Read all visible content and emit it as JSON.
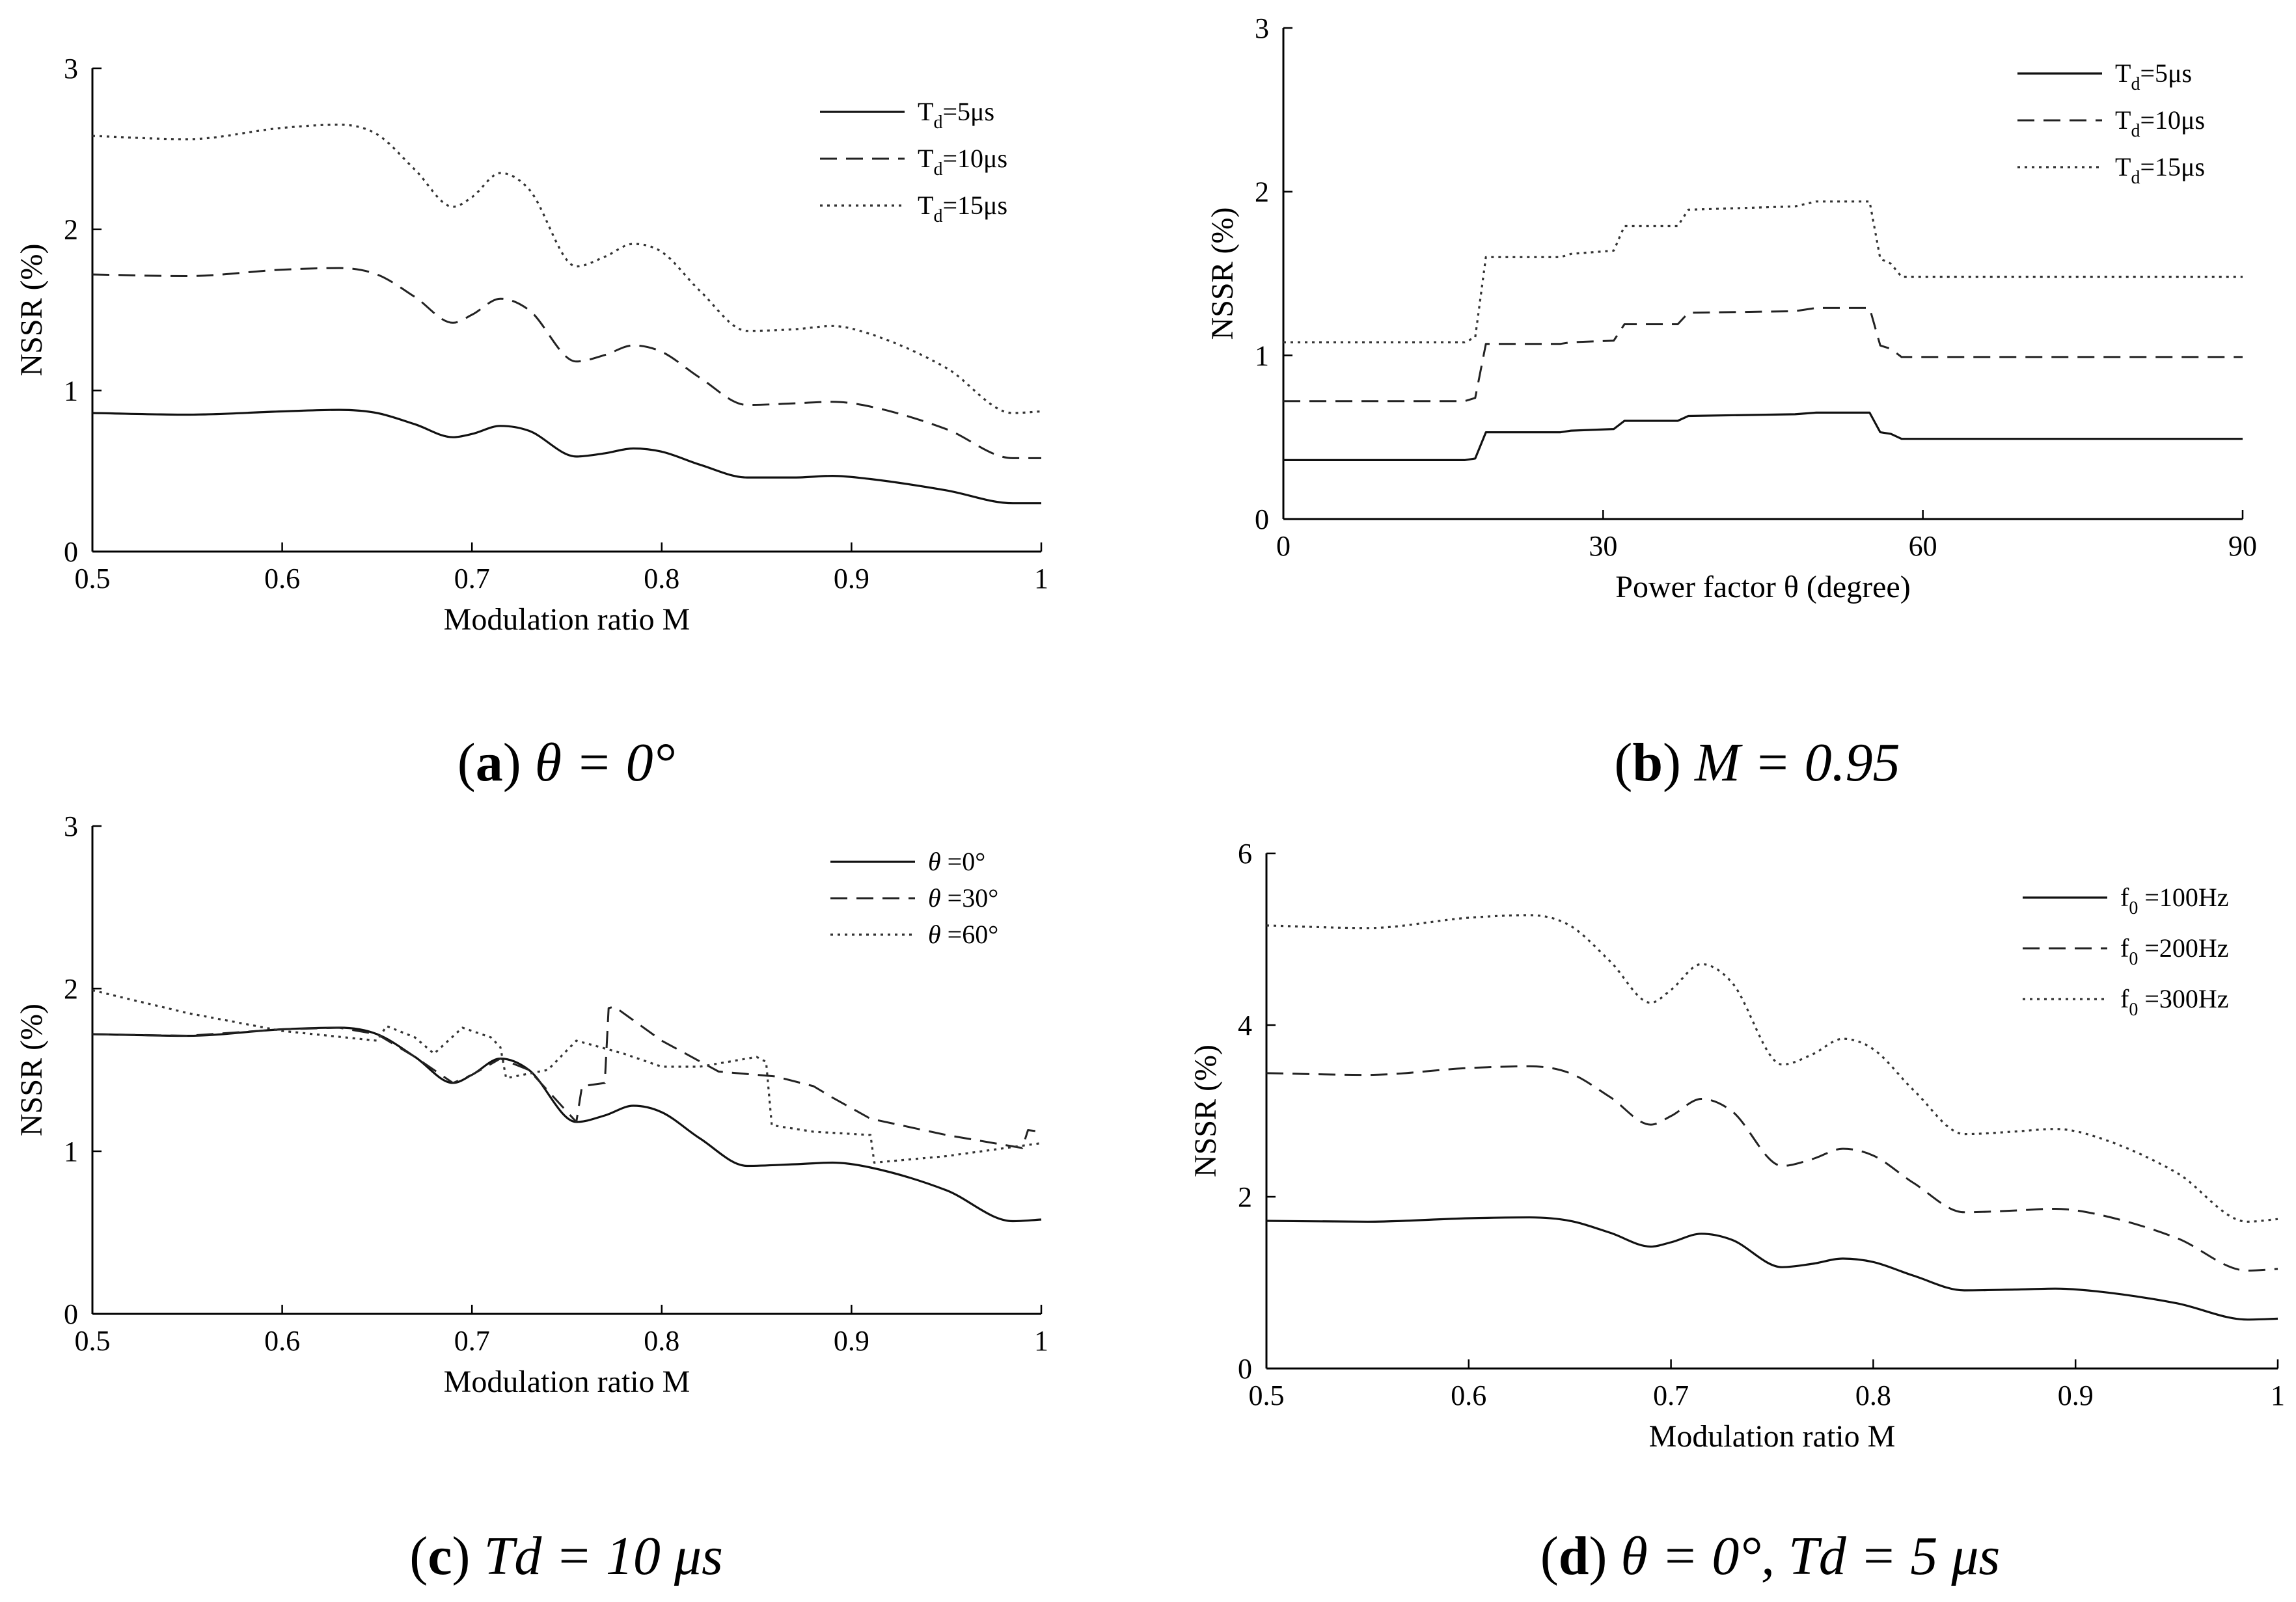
{
  "captions": [
    {
      "letter": "a",
      "text": " θ = 0°"
    },
    {
      "letter": "b",
      "text": " M = 0.95"
    },
    {
      "letter": "c",
      "text": " Td = 10 μs"
    },
    {
      "letter": "d",
      "text": " θ = 0°, Td = 5 μs"
    }
  ],
  "chart_data": [
    {
      "id": "a",
      "type": "line",
      "xlabel": "Modulation ratio  M",
      "ylabel": "NSSR (%)",
      "xlim": [
        0.5,
        1.0
      ],
      "ylim": [
        0,
        3
      ],
      "xticks": [
        0.5,
        0.6,
        0.7,
        0.8,
        0.9,
        1.0
      ],
      "xtick_labels": [
        "0.5",
        "0.6",
        "0.7",
        "0.8",
        "0.9",
        "1"
      ],
      "yticks": [
        0,
        1,
        2,
        3
      ],
      "ytick_labels": [
        "0",
        "1",
        "2",
        "3"
      ],
      "legend_position": "top-right",
      "grid": false,
      "series": [
        {
          "name": "Td=5μs",
          "legend_main": "T",
          "legend_sub": "d",
          "legend_rest": "=5μs",
          "style": "solid",
          "x": [
            0.5,
            0.55,
            0.6,
            0.63,
            0.65,
            0.67,
            0.69,
            0.7,
            0.715,
            0.73,
            0.755,
            0.77,
            0.785,
            0.8,
            0.82,
            0.845,
            0.87,
            0.89,
            0.91,
            0.95,
            0.985,
            1.0
          ],
          "y": [
            0.86,
            0.85,
            0.87,
            0.88,
            0.86,
            0.79,
            0.71,
            0.73,
            0.78,
            0.75,
            0.59,
            0.61,
            0.64,
            0.62,
            0.54,
            0.46,
            0.46,
            0.47,
            0.45,
            0.38,
            0.3,
            0.3
          ]
        },
        {
          "name": "Td=10μs",
          "legend_main": "T",
          "legend_sub": "d",
          "legend_rest": "=10μs",
          "style": "dashed",
          "x": [
            0.5,
            0.55,
            0.6,
            0.63,
            0.65,
            0.67,
            0.69,
            0.7,
            0.715,
            0.73,
            0.755,
            0.77,
            0.785,
            0.8,
            0.82,
            0.845,
            0.87,
            0.89,
            0.91,
            0.95,
            0.985,
            1.0
          ],
          "y": [
            1.72,
            1.71,
            1.75,
            1.76,
            1.72,
            1.58,
            1.42,
            1.47,
            1.57,
            1.5,
            1.18,
            1.22,
            1.28,
            1.24,
            1.08,
            0.91,
            0.92,
            0.93,
            0.9,
            0.76,
            0.58,
            0.58
          ]
        },
        {
          "name": "Td=15μs",
          "legend_main": "T",
          "legend_sub": "d",
          "legend_rest": "=15μs",
          "style": "dotted",
          "x": [
            0.5,
            0.55,
            0.6,
            0.63,
            0.65,
            0.67,
            0.69,
            0.7,
            0.715,
            0.73,
            0.755,
            0.77,
            0.785,
            0.8,
            0.82,
            0.845,
            0.87,
            0.89,
            0.91,
            0.95,
            0.985,
            1.0
          ],
          "y": [
            2.58,
            2.56,
            2.63,
            2.65,
            2.59,
            2.37,
            2.14,
            2.2,
            2.35,
            2.25,
            1.77,
            1.83,
            1.91,
            1.86,
            1.62,
            1.37,
            1.38,
            1.4,
            1.35,
            1.14,
            0.86,
            0.87
          ]
        }
      ]
    },
    {
      "id": "b",
      "type": "line",
      "xlabel": "Power factor θ  (degree)",
      "ylabel": "NSSR (%)",
      "xlim": [
        0,
        90
      ],
      "ylim": [
        0,
        3
      ],
      "xticks": [
        0,
        30,
        60,
        90
      ],
      "xtick_labels": [
        "0",
        "30",
        "60",
        "90"
      ],
      "yticks": [
        0,
        1,
        2,
        3
      ],
      "ytick_labels": [
        "0",
        "1",
        "2",
        "3"
      ],
      "legend_position": "top-right",
      "grid": false,
      "series": [
        {
          "name": "Td=5μs",
          "legend_main": "T",
          "legend_sub": "d",
          "legend_rest": "=5μs",
          "style": "solid",
          "x": [
            0,
            17,
            18,
            19,
            26,
            27,
            31,
            32,
            37,
            38,
            48,
            50,
            55,
            56,
            57,
            58,
            90
          ],
          "y": [
            0.36,
            0.36,
            0.37,
            0.53,
            0.53,
            0.54,
            0.55,
            0.6,
            0.6,
            0.63,
            0.64,
            0.65,
            0.65,
            0.53,
            0.52,
            0.49,
            0.49
          ]
        },
        {
          "name": "Td=10μs",
          "legend_main": "T",
          "legend_sub": "d",
          "legend_rest": "=10μs",
          "style": "dashed",
          "x": [
            0,
            17,
            18,
            19,
            26,
            27,
            31,
            32,
            37,
            38,
            48,
            50,
            55,
            56,
            57,
            58,
            90
          ],
          "y": [
            0.72,
            0.72,
            0.74,
            1.07,
            1.07,
            1.08,
            1.09,
            1.19,
            1.19,
            1.26,
            1.27,
            1.29,
            1.29,
            1.06,
            1.04,
            0.99,
            0.99
          ]
        },
        {
          "name": "Td=15μs",
          "legend_main": "T",
          "legend_sub": "d",
          "legend_rest": "=15μs",
          "style": "dotted",
          "x": [
            0,
            17,
            18,
            19,
            26,
            27,
            31,
            32,
            37,
            38,
            48,
            50,
            55,
            56,
            57,
            58,
            90
          ],
          "y": [
            1.08,
            1.08,
            1.11,
            1.6,
            1.6,
            1.62,
            1.64,
            1.79,
            1.79,
            1.89,
            1.91,
            1.94,
            1.94,
            1.59,
            1.56,
            1.48,
            1.48
          ]
        }
      ]
    },
    {
      "id": "c",
      "type": "line",
      "xlabel": "Modulation ratio  M",
      "ylabel": "NSSR (%)",
      "xlim": [
        0.5,
        1.0
      ],
      "ylim": [
        0,
        3
      ],
      "xticks": [
        0.5,
        0.6,
        0.7,
        0.8,
        0.9,
        1.0
      ],
      "xtick_labels": [
        "0.5",
        "0.6",
        "0.7",
        "0.8",
        "0.9",
        "1"
      ],
      "yticks": [
        0,
        1,
        2,
        3
      ],
      "ytick_labels": [
        "0",
        "1",
        "2",
        "3"
      ],
      "legend_position": "top-right",
      "grid": false,
      "series": [
        {
          "name": "θ =0°",
          "legend_main": "θ",
          "legend_sub": "",
          "legend_rest": " =0°",
          "style": "solid",
          "x": [
            0.5,
            0.55,
            0.6,
            0.63,
            0.65,
            0.67,
            0.69,
            0.7,
            0.715,
            0.73,
            0.755,
            0.77,
            0.785,
            0.8,
            0.82,
            0.845,
            0.87,
            0.89,
            0.91,
            0.95,
            0.985,
            1.0
          ],
          "y": [
            1.72,
            1.71,
            1.75,
            1.76,
            1.72,
            1.58,
            1.42,
            1.47,
            1.57,
            1.5,
            1.18,
            1.22,
            1.28,
            1.24,
            1.08,
            0.91,
            0.92,
            0.93,
            0.9,
            0.76,
            0.57,
            0.58
          ]
        },
        {
          "name": "θ =30°",
          "legend_main": "θ",
          "legend_sub": "",
          "legend_rest": " =30°",
          "style": "dashed",
          "x": [
            0.5,
            0.55,
            0.6,
            0.63,
            0.65,
            0.67,
            0.69,
            0.7,
            0.715,
            0.73,
            0.755,
            0.758,
            0.77,
            0.772,
            0.775,
            0.8,
            0.83,
            0.86,
            0.88,
            0.89,
            0.91,
            0.95,
            0.99,
            0.993,
            1.0
          ],
          "y": [
            1.72,
            1.71,
            1.75,
            1.76,
            1.72,
            1.58,
            1.42,
            1.47,
            1.57,
            1.5,
            1.18,
            1.4,
            1.42,
            1.88,
            1.89,
            1.68,
            1.49,
            1.46,
            1.4,
            1.33,
            1.2,
            1.1,
            1.02,
            1.13,
            1.12
          ]
        },
        {
          "name": "θ =60°",
          "legend_main": "θ",
          "legend_sub": "",
          "legend_rest": " =60°",
          "style": "dotted",
          "x": [
            0.5,
            0.55,
            0.6,
            0.65,
            0.655,
            0.67,
            0.68,
            0.695,
            0.71,
            0.715,
            0.718,
            0.74,
            0.755,
            0.78,
            0.8,
            0.82,
            0.85,
            0.855,
            0.858,
            0.88,
            0.91,
            0.912,
            0.95,
            1.0
          ],
          "y": [
            1.99,
            1.85,
            1.74,
            1.68,
            1.77,
            1.7,
            1.6,
            1.76,
            1.7,
            1.64,
            1.45,
            1.5,
            1.68,
            1.6,
            1.52,
            1.52,
            1.58,
            1.55,
            1.16,
            1.12,
            1.1,
            0.93,
            0.97,
            1.05
          ]
        }
      ]
    },
    {
      "id": "d",
      "type": "line",
      "xlabel": "Modulation ratio  M",
      "ylabel": "NSSR (%)",
      "xlim": [
        0.5,
        1.0
      ],
      "ylim": [
        0,
        6
      ],
      "xticks": [
        0.5,
        0.6,
        0.7,
        0.8,
        0.9,
        1.0
      ],
      "xtick_labels": [
        "0.5",
        "0.6",
        "0.7",
        "0.8",
        "0.9",
        "1"
      ],
      "yticks": [
        0,
        2,
        4,
        6
      ],
      "ytick_labels": [
        "0",
        "2",
        "4",
        "6"
      ],
      "legend_position": "top-right",
      "grid": false,
      "series": [
        {
          "name": "f0 =100Hz",
          "legend_main": "f",
          "legend_sub": "0",
          "legend_rest": " =100Hz",
          "style": "solid",
          "x": [
            0.5,
            0.55,
            0.6,
            0.63,
            0.65,
            0.67,
            0.69,
            0.7,
            0.715,
            0.73,
            0.755,
            0.77,
            0.785,
            0.8,
            0.82,
            0.845,
            0.87,
            0.89,
            0.91,
            0.95,
            0.985,
            1.0
          ],
          "y": [
            1.72,
            1.71,
            1.75,
            1.76,
            1.72,
            1.58,
            1.42,
            1.47,
            1.57,
            1.5,
            1.18,
            1.22,
            1.28,
            1.24,
            1.08,
            0.91,
            0.92,
            0.93,
            0.9,
            0.76,
            0.57,
            0.58
          ]
        },
        {
          "name": "f0 =200Hz",
          "legend_main": "f",
          "legend_sub": "0",
          "legend_rest": " =200Hz",
          "style": "dashed",
          "x": [
            0.5,
            0.55,
            0.6,
            0.63,
            0.65,
            0.67,
            0.69,
            0.7,
            0.715,
            0.73,
            0.755,
            0.77,
            0.785,
            0.8,
            0.82,
            0.845,
            0.87,
            0.89,
            0.91,
            0.95,
            0.985,
            1.0
          ],
          "y": [
            3.44,
            3.42,
            3.5,
            3.52,
            3.44,
            3.16,
            2.84,
            2.94,
            3.14,
            3.0,
            2.36,
            2.44,
            2.56,
            2.48,
            2.16,
            1.82,
            1.84,
            1.86,
            1.8,
            1.52,
            1.14,
            1.16
          ]
        },
        {
          "name": "f0 =300Hz",
          "legend_main": "f",
          "legend_sub": "0",
          "legend_rest": " =300Hz",
          "style": "dotted",
          "x": [
            0.5,
            0.55,
            0.6,
            0.63,
            0.65,
            0.67,
            0.69,
            0.7,
            0.715,
            0.73,
            0.755,
            0.77,
            0.785,
            0.8,
            0.82,
            0.845,
            0.87,
            0.89,
            0.91,
            0.95,
            0.985,
            1.0
          ],
          "y": [
            5.16,
            5.13,
            5.25,
            5.28,
            5.16,
            4.74,
            4.26,
            4.41,
            4.71,
            4.5,
            3.54,
            3.66,
            3.84,
            3.72,
            3.24,
            2.73,
            2.76,
            2.79,
            2.7,
            2.28,
            1.71,
            1.74
          ]
        }
      ]
    }
  ]
}
